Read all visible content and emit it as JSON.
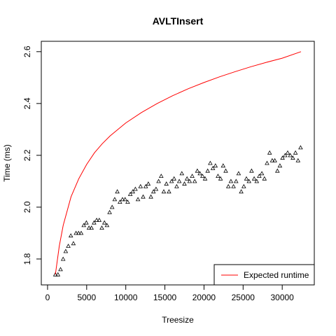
{
  "chart_data": {
    "type": "scatter",
    "title": "AVLTInsert",
    "xlabel": "Treesize",
    "ylabel": "Time (ms)",
    "xlim": [
      -800,
      34100
    ],
    "ylim": [
      1.7,
      2.64
    ],
    "x_ticks": [
      0,
      5000,
      10000,
      15000,
      20000,
      25000,
      30000
    ],
    "x_tick_labels": [
      "0",
      "5000",
      "10000",
      "15000",
      "20000",
      "25000",
      "30000"
    ],
    "y_ticks": [
      1.8,
      2.0,
      2.2,
      2.4,
      2.6
    ],
    "y_tick_labels": [
      "1.8",
      "2.0",
      "2.2",
      "2.4",
      "2.6"
    ],
    "grid": false,
    "legend": {
      "position": "bottom-right",
      "entries": [
        "Expected runtime"
      ]
    },
    "series": [
      {
        "kind": "points",
        "marker": "triangle",
        "color": "#000000",
        "x": [
          1000,
          1330,
          1660,
          1990,
          2320,
          2650,
          2980,
          3310,
          3640,
          3970,
          4300,
          4630,
          4960,
          5290,
          5620,
          5950,
          6280,
          6610,
          6940,
          7270,
          7600,
          7930,
          8260,
          8590,
          8920,
          9250,
          9580,
          9910,
          10240,
          10570,
          10900,
          11230,
          11560,
          11890,
          12220,
          12550,
          12880,
          13210,
          13540,
          13870,
          14200,
          14530,
          14860,
          15190,
          15520,
          15850,
          16180,
          16510,
          16840,
          17170,
          17500,
          17830,
          18160,
          18490,
          18820,
          19150,
          19480,
          19810,
          20140,
          20470,
          20800,
          21130,
          21460,
          21790,
          22120,
          22450,
          22780,
          23110,
          23440,
          23770,
          24100,
          24430,
          24760,
          25090,
          25420,
          25750,
          26080,
          26410,
          26740,
          27070,
          27400,
          27730,
          28060,
          28390,
          28720,
          29050,
          29380,
          29710,
          30040,
          30370,
          30700,
          31030,
          31360,
          31690,
          32020,
          32350
        ],
        "y": [
          1.74,
          1.74,
          1.76,
          1.8,
          1.83,
          1.85,
          1.89,
          1.86,
          1.9,
          1.9,
          1.9,
          1.93,
          1.94,
          1.92,
          1.92,
          1.94,
          1.95,
          1.95,
          1.92,
          1.94,
          1.93,
          1.98,
          2.0,
          2.03,
          2.06,
          2.02,
          2.03,
          2.03,
          2.02,
          2.05,
          2.06,
          2.07,
          2.03,
          2.08,
          2.04,
          2.08,
          2.09,
          2.04,
          2.06,
          2.07,
          2.1,
          2.12,
          2.06,
          2.09,
          2.06,
          2.1,
          2.11,
          2.08,
          2.1,
          2.13,
          2.09,
          2.11,
          2.1,
          2.12,
          2.1,
          2.14,
          2.13,
          2.12,
          2.11,
          2.14,
          2.17,
          2.15,
          2.16,
          2.12,
          2.11,
          2.16,
          2.14,
          2.08,
          2.1,
          2.08,
          2.1,
          2.13,
          2.06,
          2.08,
          2.11,
          2.1,
          2.14,
          2.11,
          2.1,
          2.12,
          2.13,
          2.11,
          2.17,
          2.21,
          2.18,
          2.18,
          2.14,
          2.16,
          2.19,
          2.2,
          2.21,
          2.2,
          2.19,
          2.21,
          2.18,
          2.23
        ]
      },
      {
        "name": "Expected runtime",
        "kind": "line",
        "color": "#ff0000",
        "x": [
          1000,
          1500,
          2000,
          3000,
          4000,
          5000,
          6000,
          7000,
          8000,
          10000,
          12000,
          14000,
          16000,
          18000,
          20000,
          22000,
          24000,
          26000,
          28000,
          30000,
          32400
        ],
        "y": [
          1.74,
          1.85,
          1.93,
          2.04,
          2.11,
          2.165,
          2.21,
          2.245,
          2.275,
          2.325,
          2.365,
          2.4,
          2.43,
          2.457,
          2.481,
          2.503,
          2.523,
          2.542,
          2.559,
          2.575,
          2.6
        ]
      }
    ]
  }
}
